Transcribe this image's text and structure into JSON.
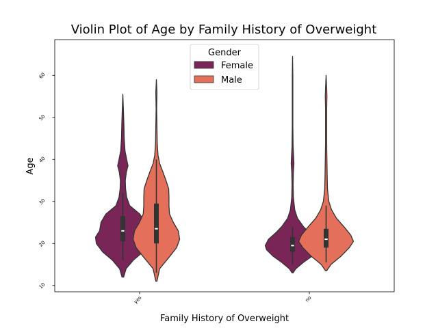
{
  "chart_data": {
    "type": "violin",
    "title": "Violin Plot of Age by Family History of Overweight",
    "xlabel": "Family History of Overweight",
    "ylabel": "Age",
    "categories": [
      "yes",
      "no"
    ],
    "ylim": [
      8.5,
      68.5
    ],
    "yticks": [
      10,
      20,
      30,
      40,
      50,
      60
    ],
    "grid": false,
    "legend": {
      "title": "Gender",
      "position": "top-center"
    },
    "series": [
      {
        "name": "Female",
        "color": "#7a2557",
        "violins": [
          {
            "category": "yes",
            "min": 12,
            "max": 55.5,
            "q1": 20.5,
            "median": 23,
            "q3": 26.5,
            "whisker_low": 16,
            "whisker_high": 32,
            "profile": [
              [
                12,
                0.03
              ],
              [
                14,
                0.12
              ],
              [
                16,
                0.38
              ],
              [
                18,
                0.74
              ],
              [
                20,
                0.97
              ],
              [
                21.5,
                1.0
              ],
              [
                23,
                0.85
              ],
              [
                25,
                0.8
              ],
              [
                27,
                0.62
              ],
              [
                29,
                0.25
              ],
              [
                31,
                0.14
              ],
              [
                33,
                0.1
              ],
              [
                35,
                0.09
              ],
              [
                37,
                0.13
              ],
              [
                38.5,
                0.19
              ],
              [
                40,
                0.14
              ],
              [
                42,
                0.08
              ],
              [
                45,
                0.05
              ],
              [
                48,
                0.04
              ],
              [
                52,
                0.02
              ],
              [
                55.5,
                0.0
              ]
            ]
          },
          {
            "category": "no",
            "min": 13,
            "max": 64.5,
            "q1": 18,
            "median": 19.5,
            "q3": 21.5,
            "whisker_low": 15,
            "whisker_high": 24,
            "profile": [
              [
                13,
                0.02
              ],
              [
                14,
                0.12
              ],
              [
                15.5,
                0.4
              ],
              [
                17,
                0.72
              ],
              [
                18.5,
                0.95
              ],
              [
                19.5,
                1.0
              ],
              [
                21,
                0.88
              ],
              [
                22.5,
                0.62
              ],
              [
                24,
                0.4
              ],
              [
                26,
                0.18
              ],
              [
                28,
                0.08
              ],
              [
                31,
                0.03
              ],
              [
                34,
                0.02
              ],
              [
                37,
                0.03
              ],
              [
                39,
                0.05
              ],
              [
                40.5,
                0.04
              ],
              [
                43,
                0.02
              ],
              [
                48,
                0.01
              ],
              [
                55,
                0.01
              ],
              [
                60,
                0.01
              ],
              [
                64.5,
                0.0
              ]
            ]
          }
        ]
      },
      {
        "name": "Male",
        "color": "#e4705b",
        "violins": [
          {
            "category": "yes",
            "min": 11,
            "max": 59,
            "q1": 20,
            "median": 23.5,
            "q3": 29.5,
            "whisker_low": 13,
            "whisker_high": 40,
            "profile": [
              [
                11,
                0.02
              ],
              [
                14,
                0.12
              ],
              [
                17,
                0.5
              ],
              [
                19,
                0.74
              ],
              [
                21,
                0.85
              ],
              [
                23,
                0.8
              ],
              [
                25,
                0.62
              ],
              [
                27,
                0.48
              ],
              [
                29,
                0.46
              ],
              [
                31,
                0.46
              ],
              [
                33,
                0.45
              ],
              [
                35,
                0.35
              ],
              [
                37,
                0.24
              ],
              [
                39,
                0.12
              ],
              [
                41,
                0.06
              ],
              [
                44,
                0.03
              ],
              [
                48,
                0.02
              ],
              [
                52,
                0.01
              ],
              [
                56,
                0.02
              ],
              [
                59,
                0.0
              ]
            ]
          },
          {
            "category": "no",
            "min": 13.5,
            "max": 60,
            "q1": 19,
            "median": 21,
            "q3": 23.5,
            "whisker_low": 15.5,
            "whisker_high": 29,
            "profile": [
              [
                13.5,
                0.02
              ],
              [
                15,
                0.18
              ],
              [
                17,
                0.55
              ],
              [
                19,
                0.85
              ],
              [
                20.5,
                1.0
              ],
              [
                22,
                0.9
              ],
              [
                24,
                0.65
              ],
              [
                26,
                0.38
              ],
              [
                28,
                0.2
              ],
              [
                30,
                0.1
              ],
              [
                33,
                0.05
              ],
              [
                36,
                0.04
              ],
              [
                40,
                0.03
              ],
              [
                44,
                0.02
              ],
              [
                48,
                0.02
              ],
              [
                52,
                0.02
              ],
              [
                55,
                0.03
              ],
              [
                57,
                0.02
              ],
              [
                60,
                0.0
              ]
            ]
          }
        ]
      }
    ]
  }
}
